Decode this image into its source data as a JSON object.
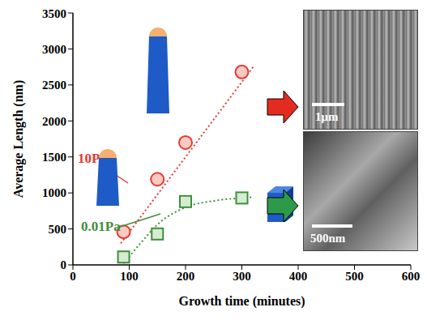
{
  "chart_data": {
    "type": "scatter",
    "x_label": "Growth time (minutes)",
    "y_label": "Average Length (nm)",
    "xlim": [
      0,
      600
    ],
    "xticks": [
      0,
      100,
      200,
      300,
      400,
      500,
      600
    ],
    "ylim": [
      0,
      3500
    ],
    "yticks": [
      0,
      500,
      1000,
      1500,
      2000,
      2500,
      3000,
      3500
    ],
    "grid": false,
    "series": [
      {
        "name": "10Pa",
        "color": "#e53a2e",
        "marker": "circle",
        "line_style": "dotted",
        "x": [
          90,
          150,
          200,
          300
        ],
        "values": [
          460,
          1190,
          1700,
          2680
        ],
        "trend_x": [
          85,
          320
        ],
        "trend_values": [
          300,
          2750
        ]
      },
      {
        "name": "0.01Pa",
        "color": "#3e8e3e",
        "marker": "square",
        "line_style": "dotted",
        "x": [
          90,
          150,
          200,
          300
        ],
        "values": [
          110,
          430,
          880,
          930
        ],
        "trend_x": [
          90,
          120,
          150,
          200,
          250,
          300,
          320
        ],
        "trend_values": [
          20,
          300,
          560,
          800,
          890,
          930,
          940
        ]
      }
    ],
    "annotations": [
      "1μm",
      "500nm"
    ]
  }
}
